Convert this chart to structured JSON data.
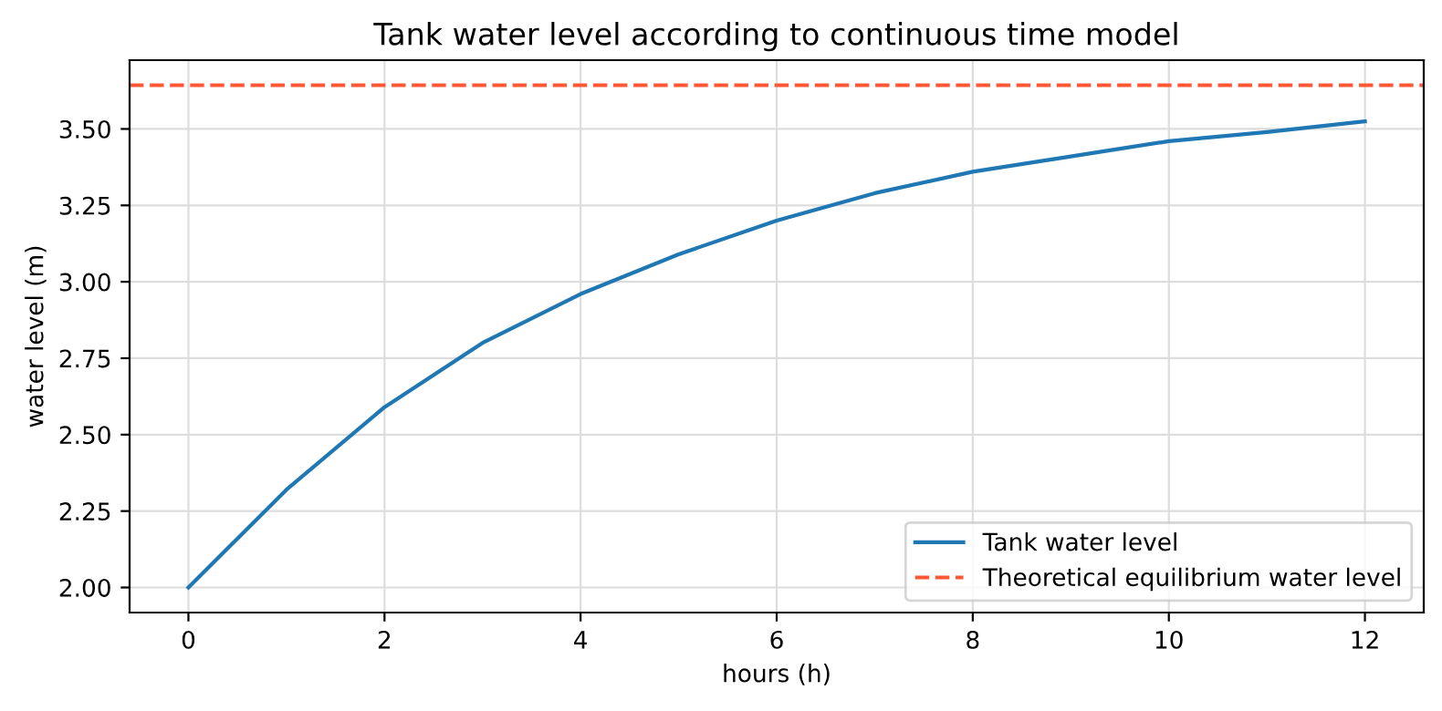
{
  "chart_data": {
    "type": "line",
    "title": "Tank water level according to continuous time model",
    "xlabel": "hours (h)",
    "ylabel": "water level (m)",
    "x": [
      0,
      1,
      2,
      3,
      4,
      5,
      6,
      7,
      8,
      9,
      10,
      11,
      12
    ],
    "series": [
      {
        "name": "Tank water level",
        "color": "#1f77b4",
        "values": [
          2.0,
          2.32,
          2.59,
          2.8,
          2.96,
          3.09,
          3.2,
          3.29,
          3.36,
          3.41,
          3.46,
          3.49,
          3.525
        ]
      }
    ],
    "ref_lines": [
      {
        "axis": "y",
        "value": 3.643,
        "label": "Theoretical equilibrium water level",
        "color": "#ff5733",
        "line_style": "dashed"
      }
    ],
    "xlim": [
      -0.6,
      12.6
    ],
    "xticks": [
      0,
      2,
      4,
      6,
      8,
      10,
      12
    ],
    "ylim": [
      1.918,
      3.725
    ],
    "yticks": [
      {
        "value": 2.0,
        "label": "2.00"
      },
      {
        "value": 2.25,
        "label": "2.25"
      },
      {
        "value": 2.5,
        "label": "2.50"
      },
      {
        "value": 2.75,
        "label": "2.75"
      },
      {
        "value": 3.0,
        "label": "3.00"
      },
      {
        "value": 3.25,
        "label": "3.25"
      },
      {
        "value": 3.5,
        "label": "3.50"
      }
    ],
    "grid": true,
    "legend": "bottom right",
    "marker": "none",
    "line_style": "solid"
  }
}
